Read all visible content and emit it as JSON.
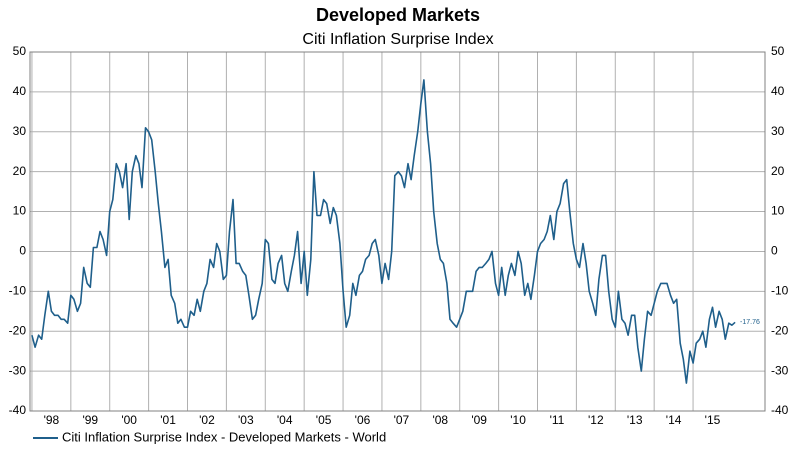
{
  "chart_data": {
    "type": "line",
    "title": "Developed Markets",
    "subtitle": "Citi Inflation Surprise Index",
    "x": [
      1998,
      1998.08,
      1998.17,
      1998.25,
      1998.33,
      1998.42,
      1998.5,
      1998.58,
      1998.67,
      1998.75,
      1998.83,
      1998.92,
      1999,
      1999.08,
      1999.17,
      1999.25,
      1999.33,
      1999.42,
      1999.5,
      1999.58,
      1999.67,
      1999.75,
      1999.83,
      1999.92,
      2000,
      2000.08,
      2000.17,
      2000.25,
      2000.33,
      2000.42,
      2000.5,
      2000.58,
      2000.67,
      2000.75,
      2000.83,
      2000.92,
      2001,
      2001.08,
      2001.17,
      2001.25,
      2001.33,
      2001.42,
      2001.5,
      2001.58,
      2001.67,
      2001.75,
      2001.83,
      2001.92,
      2002,
      2002.08,
      2002.17,
      2002.25,
      2002.33,
      2002.42,
      2002.5,
      2002.58,
      2002.67,
      2002.75,
      2002.83,
      2002.92,
      2003,
      2003.08,
      2003.17,
      2003.25,
      2003.33,
      2003.42,
      2003.5,
      2003.58,
      2003.67,
      2003.75,
      2003.83,
      2003.92,
      2004,
      2004.08,
      2004.17,
      2004.25,
      2004.33,
      2004.42,
      2004.5,
      2004.58,
      2004.67,
      2004.75,
      2004.83,
      2004.92,
      2005,
      2005.08,
      2005.17,
      2005.25,
      2005.33,
      2005.42,
      2005.5,
      2005.58,
      2005.67,
      2005.75,
      2005.83,
      2005.92,
      2006,
      2006.08,
      2006.17,
      2006.25,
      2006.33,
      2006.42,
      2006.5,
      2006.58,
      2006.67,
      2006.75,
      2006.83,
      2006.92,
      2007,
      2007.08,
      2007.17,
      2007.25,
      2007.33,
      2007.42,
      2007.5,
      2007.58,
      2007.67,
      2007.75,
      2007.83,
      2007.92,
      2008,
      2008.08,
      2008.17,
      2008.25,
      2008.33,
      2008.42,
      2008.5,
      2008.58,
      2008.67,
      2008.75,
      2008.83,
      2008.92,
      2009,
      2009.08,
      2009.17,
      2009.25,
      2009.33,
      2009.42,
      2009.5,
      2009.58,
      2009.67,
      2009.75,
      2009.83,
      2009.92,
      2010,
      2010.08,
      2010.17,
      2010.25,
      2010.33,
      2010.42,
      2010.5,
      2010.58,
      2010.67,
      2010.75,
      2010.83,
      2010.92,
      2011,
      2011.08,
      2011.17,
      2011.25,
      2011.33,
      2011.42,
      2011.5,
      2011.58,
      2011.67,
      2011.75,
      2011.83,
      2011.92,
      2012,
      2012.08,
      2012.17,
      2012.25,
      2012.33,
      2012.42,
      2012.5,
      2012.58,
      2012.67,
      2012.75,
      2012.83,
      2012.92,
      2013,
      2013.08,
      2013.17,
      2013.25,
      2013.33,
      2013.42,
      2013.5,
      2013.58,
      2013.67,
      2013.75,
      2013.83,
      2013.92,
      2014,
      2014.08,
      2014.17,
      2014.25,
      2014.33,
      2014.42,
      2014.5,
      2014.58,
      2014.67,
      2014.75,
      2014.83,
      2014.92,
      2015,
      2015.08,
      2015.17,
      2015.25,
      2015.33,
      2015.42,
      2015.5,
      2015.58,
      2015.67,
      2015.75,
      2015.83,
      2015.92,
      2016,
      2016.08
    ],
    "series": [
      {
        "name": "Citi Inflation Surprise Index - Developed Markets - World",
        "color": "#1f5f8b",
        "values": [
          -21,
          -24,
          -21,
          -22,
          -16,
          -10,
          -15,
          -16,
          -16,
          -17,
          -17,
          -18,
          -11,
          -12,
          -15,
          -13,
          -4,
          -8,
          -9,
          1,
          1,
          5,
          3,
          -1,
          10,
          13,
          22,
          20,
          16,
          22,
          8,
          20,
          24,
          22,
          16,
          31,
          30,
          28,
          20,
          12,
          5,
          -4,
          -2,
          -11,
          -13,
          -18,
          -17,
          -19,
          -19,
          -15,
          -16,
          -12,
          -15,
          -10,
          -8,
          -2,
          -4,
          2,
          0,
          -7,
          -6,
          5,
          13,
          -3,
          -3,
          -5,
          -6,
          -11,
          -17,
          -16,
          -12,
          -8,
          3,
          2,
          -7,
          -8,
          -3,
          -1,
          -8,
          -10,
          -5,
          -1,
          5,
          -8,
          0,
          -11,
          -2,
          20,
          9,
          9,
          13,
          12,
          7,
          11,
          9,
          2,
          -10,
          -19,
          -16,
          -8,
          -11,
          -6,
          -5,
          -2,
          -1,
          2,
          3,
          -1,
          -8,
          -3,
          -7,
          0,
          19,
          20,
          19,
          16,
          22,
          18,
          24,
          30,
          37,
          43,
          30,
          22,
          10,
          2,
          -2,
          -3,
          -8,
          -17,
          -18,
          -19,
          -17,
          -15,
          -10,
          -10,
          -10,
          -5,
          -4,
          -4,
          -3,
          -2,
          0,
          -8,
          -11,
          -4,
          -11,
          -6,
          -3,
          -6,
          0,
          -3,
          -11,
          -8,
          -12,
          -6,
          0,
          2,
          3,
          5,
          9,
          3,
          10,
          12,
          17,
          18,
          10,
          2,
          -2,
          -4,
          2,
          -3,
          -10,
          -13,
          -16,
          -7,
          -1,
          -1,
          -10,
          -17,
          -19,
          -10,
          -17,
          -18,
          -21,
          -16,
          -16,
          -24,
          -30,
          -22,
          -15,
          -16,
          -13,
          -10,
          -8,
          -8,
          -8,
          -11,
          -13,
          -12,
          -23,
          -27,
          -33,
          -25,
          -28,
          -23,
          -22,
          -20,
          -24,
          -17,
          -14,
          -19,
          -15,
          -17,
          -22,
          -18,
          -18.5,
          -17.76
        ]
      }
    ],
    "xlim": [
      1997.95,
      2016.85
    ],
    "xticks": [
      {
        "value": 1998,
        "label": "'98"
      },
      {
        "value": 1999,
        "label": "'99"
      },
      {
        "value": 2000,
        "label": "'00"
      },
      {
        "value": 2001,
        "label": "'01"
      },
      {
        "value": 2002,
        "label": "'02"
      },
      {
        "value": 2003,
        "label": "'03"
      },
      {
        "value": 2004,
        "label": "'04"
      },
      {
        "value": 2005,
        "label": "'05"
      },
      {
        "value": 2006,
        "label": "'06"
      },
      {
        "value": 2007,
        "label": "'07"
      },
      {
        "value": 2008,
        "label": "'08"
      },
      {
        "value": 2009,
        "label": "'09"
      },
      {
        "value": 2010,
        "label": "'10"
      },
      {
        "value": 2011,
        "label": "'11"
      },
      {
        "value": 2012,
        "label": "'12"
      },
      {
        "value": 2013,
        "label": "'13"
      },
      {
        "value": 2014,
        "label": "'14"
      },
      {
        "value": 2015,
        "label": "'15"
      }
    ],
    "ylim": [
      -40,
      50
    ],
    "yticks": [
      -40,
      -30,
      -20,
      -10,
      0,
      10,
      20,
      30,
      40,
      50
    ],
    "grid": true
  }
}
